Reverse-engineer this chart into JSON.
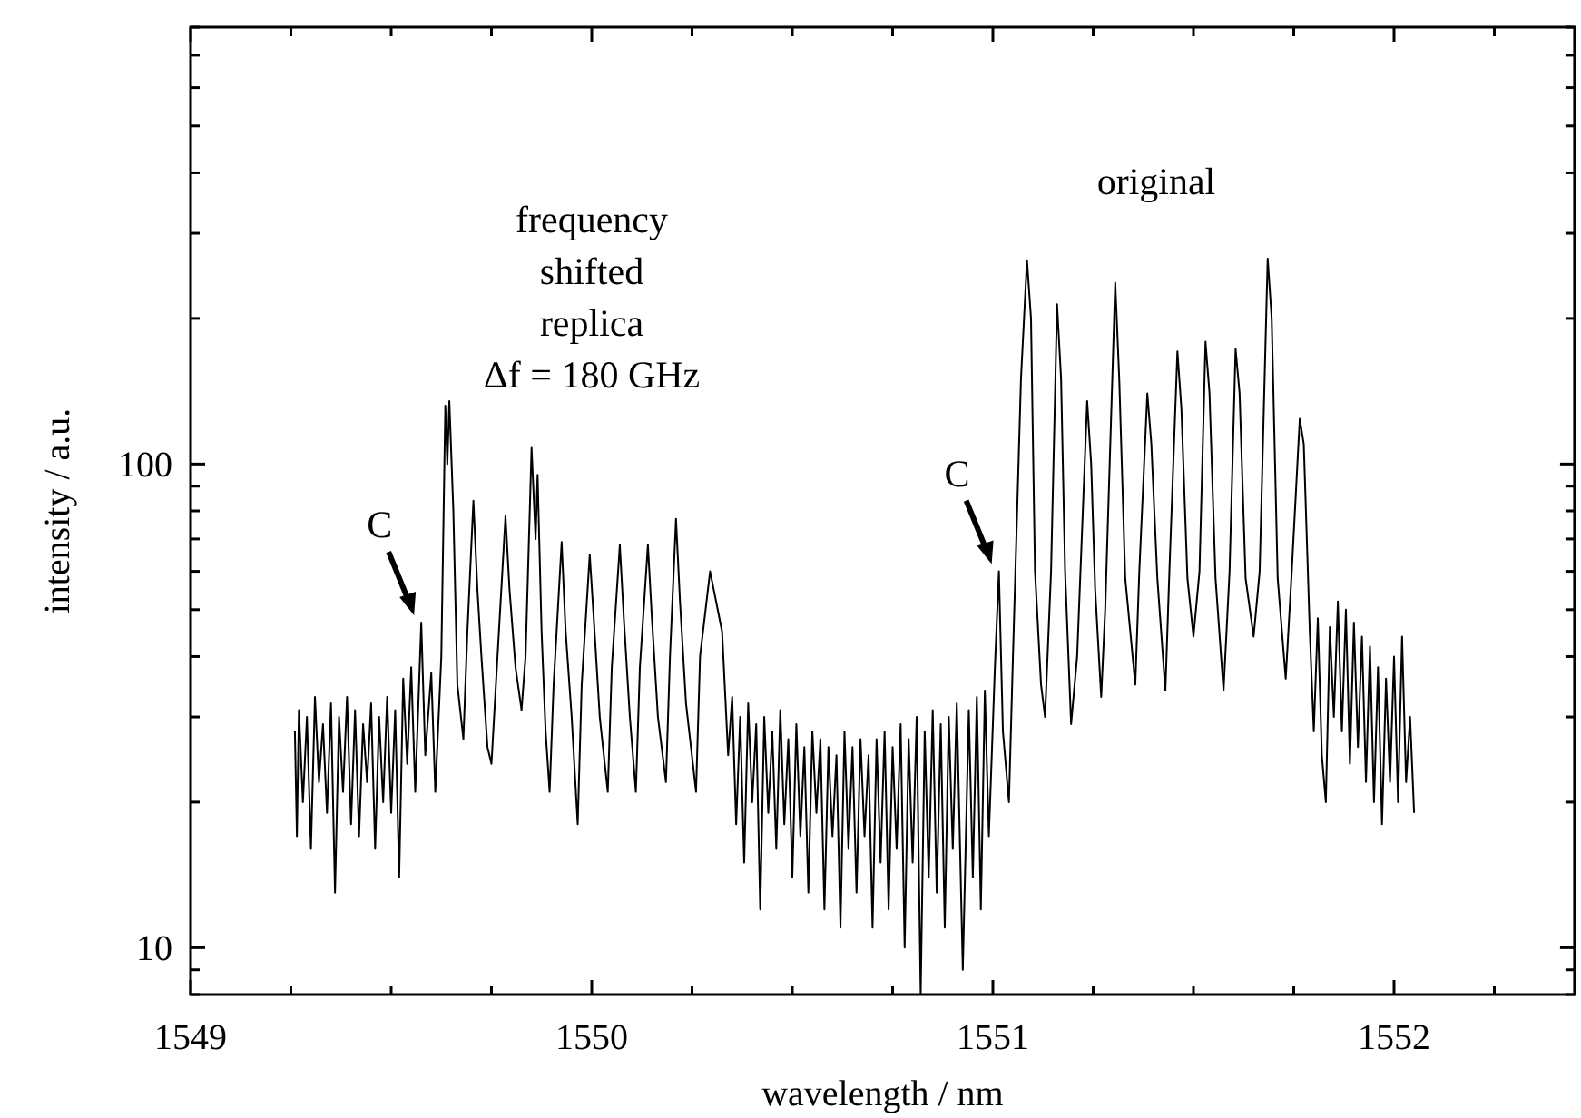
{
  "chart_data": {
    "type": "line",
    "xlabel": "wavelength / nm",
    "ylabel": "intensity / a.u.",
    "xlim": [
      1549,
      1552.45
    ],
    "ylim": [
      8,
      800
    ],
    "log": "y",
    "xticks": [
      1549,
      {
        "value": 1549.25,
        "label": null
      },
      {
        "value": 1549.5,
        "label": null
      },
      {
        "value": 1549.75,
        "label": null
      },
      1550,
      {
        "value": 1550.25,
        "label": null
      },
      {
        "value": 1550.5,
        "label": null
      },
      {
        "value": 1550.75,
        "label": null
      },
      1551,
      {
        "value": 1551.25,
        "label": null
      },
      {
        "value": 1551.5,
        "label": null
      },
      {
        "value": 1551.75,
        "label": null
      },
      1552,
      {
        "value": 1552.25,
        "label": null
      }
    ],
    "yticks": [
      {
        "value": 8,
        "label": null
      },
      {
        "value": 9,
        "label": null
      },
      10,
      {
        "value": 20,
        "label": null
      },
      {
        "value": 30,
        "label": null
      },
      {
        "value": 40,
        "label": null
      },
      {
        "value": 50,
        "label": null
      },
      {
        "value": 60,
        "label": null
      },
      {
        "value": 70,
        "label": null
      },
      {
        "value": 80,
        "label": null
      },
      {
        "value": 90,
        "label": null
      },
      100,
      {
        "value": 200,
        "label": null
      },
      {
        "value": 300,
        "label": null
      },
      {
        "value": 400,
        "label": null
      },
      {
        "value": 500,
        "label": null
      },
      {
        "value": 600,
        "label": null
      },
      {
        "value": 700,
        "label": null
      },
      {
        "value": 800,
        "label": null
      }
    ],
    "marker": "none",
    "line_style": "solid",
    "annotations": [
      "frequency\nshifted\nreplica\nΔf = 180 GHz",
      "original",
      {
        "text": "C",
        "x": 1549.575,
        "y": 47
      },
      {
        "text": "C",
        "x": 1551.015,
        "y": 60
      }
    ],
    "series": [
      {
        "color": "#000000",
        "x": [
          1549.26,
          1549.265,
          1549.27,
          1549.28,
          1549.29,
          1549.3,
          1549.31,
          1549.32,
          1549.33,
          1549.34,
          1549.35,
          1549.36,
          1549.37,
          1549.38,
          1549.39,
          1549.4,
          1549.41,
          1549.42,
          1549.43,
          1549.44,
          1549.45,
          1549.46,
          1549.47,
          1549.48,
          1549.49,
          1549.5,
          1549.51,
          1549.52,
          1549.53,
          1549.54,
          1549.55,
          1549.56,
          1549.575,
          1549.585,
          1549.6,
          1549.61,
          1549.625,
          1549.635,
          1549.64,
          1549.645,
          1549.655,
          1549.665,
          1549.68,
          1549.69,
          1549.705,
          1549.715,
          1549.725,
          1549.74,
          1549.75,
          1549.765,
          1549.785,
          1549.795,
          1549.81,
          1549.825,
          1549.835,
          1549.85,
          1549.86,
          1549.865,
          1549.875,
          1549.885,
          1549.895,
          1549.905,
          1549.925,
          1549.935,
          1549.95,
          1549.965,
          1549.975,
          1549.995,
          1550.005,
          1550.02,
          1550.04,
          1550.05,
          1550.07,
          1550.08,
          1550.095,
          1550.11,
          1550.12,
          1550.14,
          1550.15,
          1550.165,
          1550.185,
          1550.195,
          1550.21,
          1550.22,
          1550.235,
          1550.26,
          1550.27,
          1550.295,
          1550.31,
          1550.325,
          1550.34,
          1550.35,
          1550.36,
          1550.37,
          1550.38,
          1550.39,
          1550.4,
          1550.41,
          1550.42,
          1550.43,
          1550.44,
          1550.45,
          1550.46,
          1550.47,
          1550.48,
          1550.49,
          1550.5,
          1550.51,
          1550.52,
          1550.53,
          1550.54,
          1550.55,
          1550.56,
          1550.57,
          1550.58,
          1550.59,
          1550.6,
          1550.61,
          1550.62,
          1550.63,
          1550.64,
          1550.65,
          1550.66,
          1550.67,
          1550.68,
          1550.69,
          1550.7,
          1550.71,
          1550.72,
          1550.73,
          1550.74,
          1550.75,
          1550.76,
          1550.77,
          1550.78,
          1550.79,
          1550.8,
          1550.81,
          1550.82,
          1550.83,
          1550.84,
          1550.85,
          1550.86,
          1550.87,
          1550.88,
          1550.89,
          1550.9,
          1550.91,
          1550.925,
          1550.94,
          1550.95,
          1550.96,
          1550.97,
          1550.98,
          1550.99,
          1551.005,
          1551.015,
          1551.025,
          1551.04,
          1551.05,
          1551.07,
          1551.085,
          1551.095,
          1551.105,
          1551.12,
          1551.13,
          1551.145,
          1551.16,
          1551.17,
          1551.18,
          1551.195,
          1551.21,
          1551.235,
          1551.245,
          1551.255,
          1551.27,
          1551.28,
          1551.305,
          1551.315,
          1551.33,
          1551.355,
          1551.365,
          1551.385,
          1551.395,
          1551.41,
          1551.43,
          1551.44,
          1551.46,
          1551.47,
          1551.485,
          1551.5,
          1551.515,
          1551.53,
          1551.54,
          1551.555,
          1551.575,
          1551.59,
          1551.605,
          1551.615,
          1551.63,
          1551.65,
          1551.665,
          1551.685,
          1551.695,
          1551.71,
          1551.73,
          1551.745,
          1551.765,
          1551.775,
          1551.79,
          1551.8,
          1551.81,
          1551.82,
          1551.83,
          1551.84,
          1551.85,
          1551.86,
          1551.87,
          1551.88,
          1551.89,
          1551.9,
          1551.91,
          1551.92,
          1551.93,
          1551.94,
          1551.95,
          1551.96,
          1551.97,
          1551.98,
          1551.99,
          1552,
          1552.01,
          1552.02,
          1552.03,
          1552.04,
          1552.05
        ],
        "values": [
          28,
          17,
          31,
          20,
          30,
          16,
          33,
          22,
          29,
          19,
          32,
          13,
          30,
          21,
          33,
          18,
          31,
          17,
          29,
          22,
          32,
          16,
          30,
          20,
          33,
          19,
          31,
          14,
          36,
          24,
          38,
          21,
          47,
          25,
          37,
          21,
          40,
          132,
          100,
          135,
          80,
          35,
          27,
          45,
          84,
          55,
          40,
          26,
          24,
          40,
          78,
          55,
          38,
          31,
          40,
          108,
          70,
          95,
          45,
          28,
          21,
          35,
          69,
          45,
          30,
          18,
          35,
          65,
          48,
          30,
          21,
          38,
          68,
          48,
          30,
          21,
          38,
          68,
          48,
          30,
          22,
          40,
          77,
          52,
          32,
          21,
          40,
          60,
          52,
          45,
          25,
          33,
          18,
          30,
          15,
          32,
          20,
          29,
          12,
          30,
          19,
          28,
          16,
          31,
          18,
          27,
          14,
          29,
          17,
          26,
          13,
          28,
          19,
          27,
          12,
          26,
          17,
          25,
          11,
          28,
          16,
          26,
          13,
          27,
          17,
          25,
          11,
          27,
          15,
          28,
          12,
          26,
          16,
          29,
          10,
          27,
          15,
          30,
          8,
          28,
          14,
          31,
          13,
          29,
          11,
          30,
          16,
          32,
          9,
          31,
          14,
          33,
          12,
          34,
          17,
          38,
          60,
          28,
          20,
          40,
          150,
          264,
          200,
          60,
          35,
          30,
          60,
          214,
          150,
          60,
          29,
          40,
          135,
          100,
          55,
          33,
          50,
          237,
          150,
          58,
          35,
          60,
          140,
          110,
          58,
          34,
          60,
          171,
          130,
          58,
          44,
          60,
          179,
          140,
          58,
          34,
          60,
          173,
          140,
          58,
          44,
          60,
          266,
          200,
          58,
          36,
          60,
          124,
          110,
          45,
          28,
          48,
          25,
          20,
          46,
          30,
          52,
          28,
          50,
          24,
          47,
          26,
          44,
          22,
          42,
          20,
          38,
          18,
          36,
          22,
          40,
          20,
          44,
          22,
          30,
          19
        ]
      }
    ]
  }
}
